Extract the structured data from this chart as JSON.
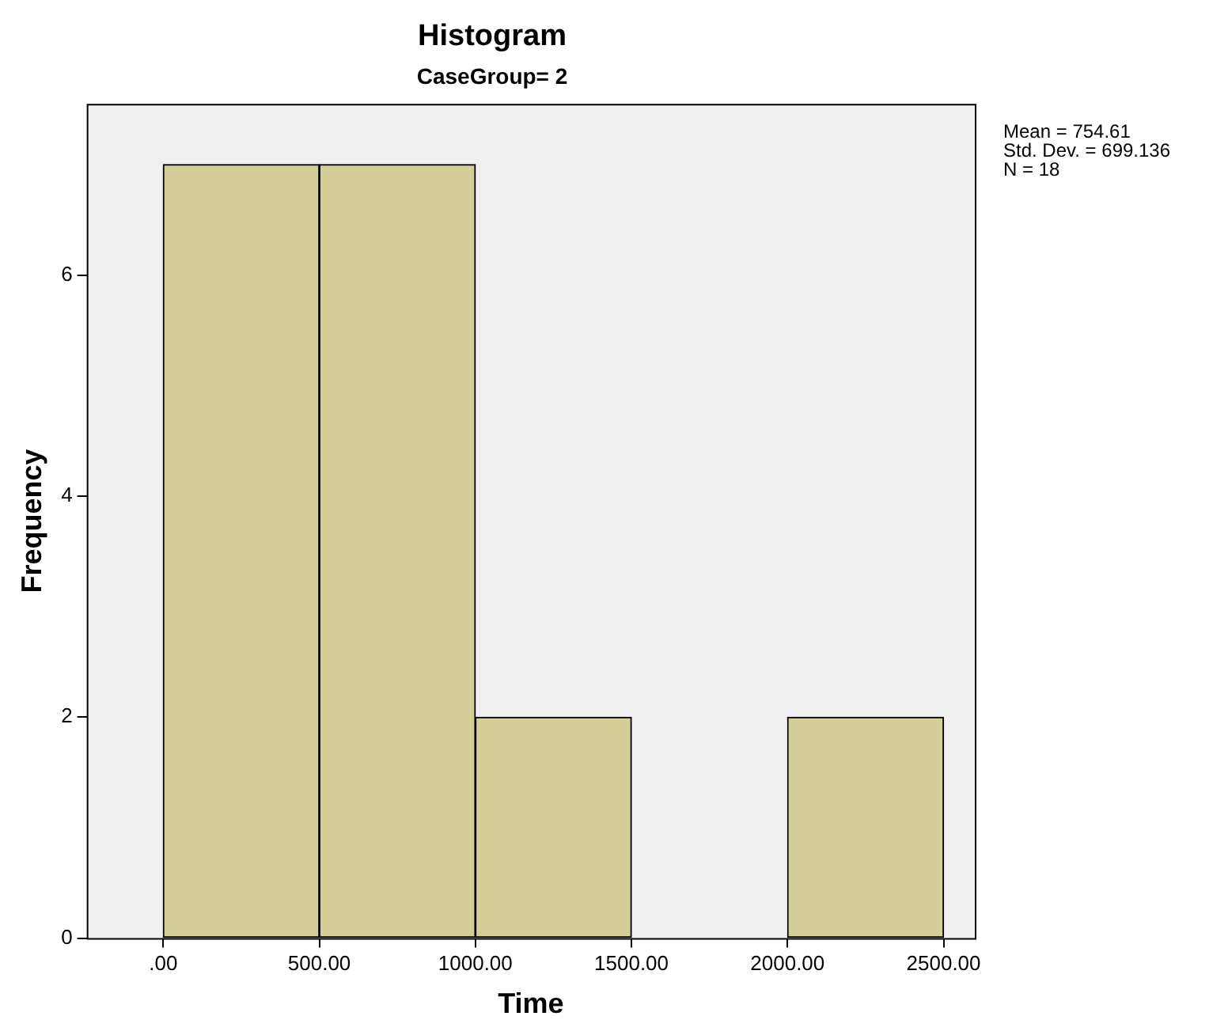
{
  "chart_data": {
    "type": "histogram",
    "title": "Histogram",
    "subtitle": "CaseGroup= 2",
    "xlabel": "Time",
    "ylabel": "Frequency",
    "bins": [
      0,
      500,
      1000,
      1500,
      2000,
      2500
    ],
    "values": [
      7,
      7,
      2,
      0,
      2
    ],
    "color": "#d4cf98",
    "xlim": [
      -245,
      2600
    ],
    "ylim": [
      0,
      7.55
    ],
    "xticks": [
      {
        "value": 0,
        "label": ".00"
      },
      {
        "value": 500,
        "label": "500.00"
      },
      {
        "value": 1000,
        "label": "1000.00"
      },
      {
        "value": 1500,
        "label": "1500.00"
      },
      {
        "value": 2000,
        "label": "2000.00"
      },
      {
        "value": 2500,
        "label": "2500.00"
      }
    ],
    "yticks": [
      0,
      2,
      4,
      6
    ],
    "annotations": [
      "Mean = 754.61",
      "Std. Dev. = 699.136",
      "N = 18"
    ],
    "grid": false,
    "legend": false
  }
}
